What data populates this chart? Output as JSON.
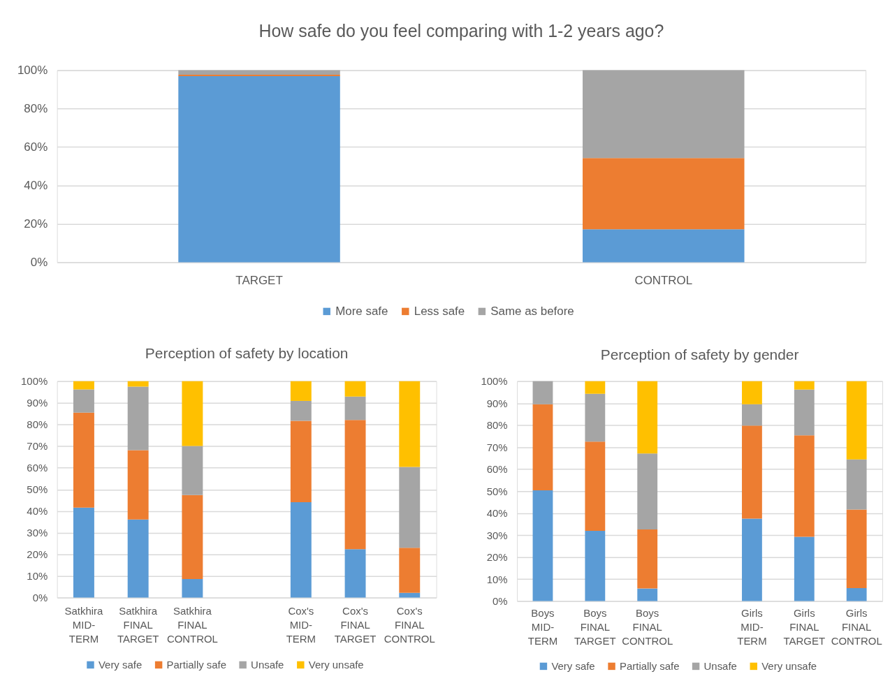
{
  "chart_data": [
    {
      "type": "bar",
      "title": "How safe do you feel comparing with 1-2 years ago?",
      "categories": [
        "TARGET",
        "CONTROL"
      ],
      "stacked": true,
      "series": [
        {
          "name": "More safe",
          "color": "#5b9bd5",
          "values": [
            96.9,
            17.2
          ]
        },
        {
          "name": "Less safe",
          "color": "#ed7d31",
          "values": [
            0.7,
            37.1
          ]
        },
        {
          "name": "Same as before",
          "color": "#a5a5a5",
          "values": [
            2.4,
            45.7
          ]
        }
      ],
      "ylim": [
        0,
        100
      ],
      "yticks": [
        {
          "value": 0,
          "label": "0%"
        },
        {
          "value": 20,
          "label": "20%"
        },
        {
          "value": 40,
          "label": "40%"
        },
        {
          "value": 60,
          "label": "60%"
        },
        {
          "value": 80,
          "label": "80%"
        },
        {
          "value": 100,
          "label": "100%"
        }
      ],
      "grid": "y",
      "legend": "bottom"
    },
    {
      "type": "bar",
      "title": "Perception of safety by location",
      "categories": [
        "Satkhira MID-TERM",
        "Satkhira FINAL TARGET",
        "Satkhira FINAL CONTROL",
        null,
        "Cox's MID-TERM",
        "Cox's FINAL TARGET",
        "Cox's FINAL CONTROL"
      ],
      "stacked": true,
      "series": [
        {
          "name": "Very safe",
          "color": "#5b9bd5",
          "values": [
            41.6,
            36.1,
            8.6,
            null,
            44.1,
            22.4,
            2.2
          ]
        },
        {
          "name": "Partially safe",
          "color": "#ed7d31",
          "values": [
            43.9,
            32.0,
            38.8,
            null,
            37.6,
            59.7,
            20.8
          ]
        },
        {
          "name": "Unsafe",
          "color": "#a5a5a5",
          "values": [
            10.7,
            29.4,
            22.7,
            null,
            9.2,
            10.8,
            37.4
          ]
        },
        {
          "name": "Very unsafe",
          "color": "#ffc000",
          "values": [
            3.8,
            2.5,
            29.9,
            null,
            9.1,
            7.1,
            39.6
          ]
        }
      ],
      "ylim": [
        0,
        100
      ],
      "yticks": [
        {
          "value": 0,
          "label": "0%"
        },
        {
          "value": 10,
          "label": "10%"
        },
        {
          "value": 20,
          "label": "20%"
        },
        {
          "value": 30,
          "label": "30%"
        },
        {
          "value": 40,
          "label": "40%"
        },
        {
          "value": 50,
          "label": "50%"
        },
        {
          "value": 60,
          "label": "60%"
        },
        {
          "value": 70,
          "label": "70%"
        },
        {
          "value": 80,
          "label": "80%"
        },
        {
          "value": 90,
          "label": "90%"
        },
        {
          "value": 100,
          "label": "100%"
        }
      ],
      "grid": "y",
      "legend": "bottom"
    },
    {
      "type": "bar",
      "title": "Perception of safety by gender",
      "categories": [
        "Boys MID-TERM",
        "Boys FINAL TARGET",
        "Boys FINAL CONTROL",
        null,
        "Girls MID-TERM",
        "Girls FINAL TARGET",
        "Girls FINAL CONTROL"
      ],
      "stacked": true,
      "series": [
        {
          "name": "Very safe",
          "color": "#5b9bd5",
          "values": [
            50.4,
            31.9,
            5.7,
            null,
            37.5,
            29.2,
            5.9
          ]
        },
        {
          "name": "Partially safe",
          "color": "#ed7d31",
          "values": [
            39.1,
            40.6,
            26.9,
            null,
            42.3,
            46.2,
            35.7
          ]
        },
        {
          "name": "Unsafe",
          "color": "#a5a5a5",
          "values": [
            10.5,
            21.8,
            34.5,
            null,
            9.7,
            20.8,
            22.8
          ]
        },
        {
          "name": "Very unsafe",
          "color": "#ffc000",
          "values": [
            null,
            5.7,
            32.9,
            null,
            10.5,
            3.8,
            35.6
          ]
        }
      ],
      "ylim": [
        0,
        100
      ],
      "yticks": [
        {
          "value": 0,
          "label": "0%"
        },
        {
          "value": 10,
          "label": "10%"
        },
        {
          "value": 20,
          "label": "20%"
        },
        {
          "value": 30,
          "label": "30%"
        },
        {
          "value": 40,
          "label": "40%"
        },
        {
          "value": 50,
          "label": "50%"
        },
        {
          "value": 60,
          "label": "60%"
        },
        {
          "value": 70,
          "label": "70%"
        },
        {
          "value": 80,
          "label": "80%"
        },
        {
          "value": 90,
          "label": "90%"
        },
        {
          "value": 100,
          "label": "100%"
        }
      ],
      "grid": "y",
      "legend": "bottom"
    }
  ]
}
